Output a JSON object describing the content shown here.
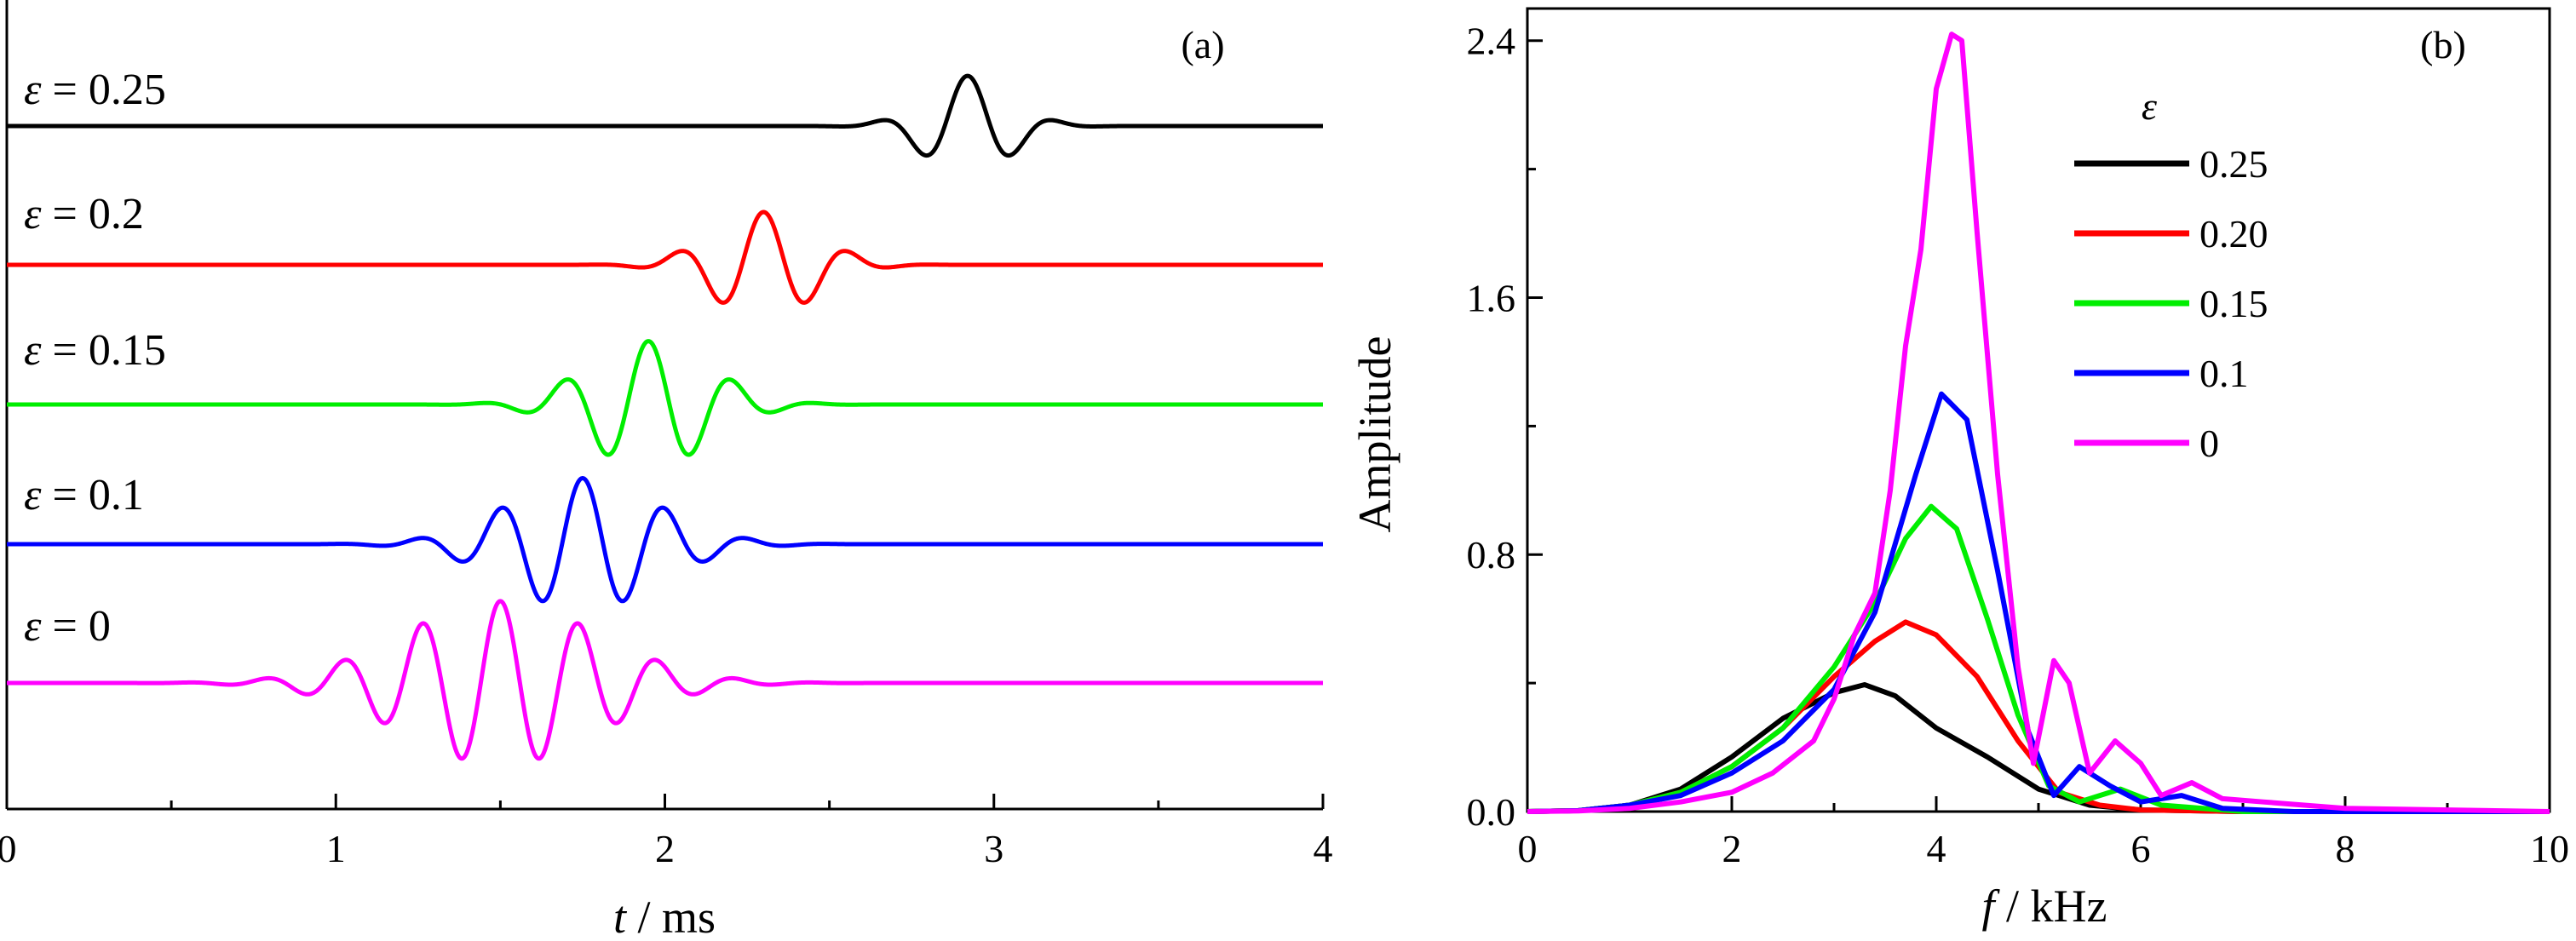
{
  "chart_data": [
    {
      "panel_label": "(a)",
      "type": "line",
      "xlabel": "t / ms",
      "xlim": [
        0,
        4
      ],
      "xticks": [
        "0",
        "1",
        "2",
        "3",
        "4"
      ],
      "series": [
        {
          "name": "ε = 0.25",
          "color": "#000000",
          "wavelet": {
            "t0": 2.92,
            "f": 3.6,
            "sigma": 0.18,
            "amp": 0.95
          }
        },
        {
          "name": "ε = 0.2",
          "color": "#ff0000",
          "wavelet": {
            "t0": 2.3,
            "f": 3.8,
            "sigma": 0.22,
            "amp": 1.0
          }
        },
        {
          "name": "ε = 0.15",
          "color": "#00ee00",
          "wavelet": {
            "t0": 1.95,
            "f": 3.9,
            "sigma": 0.26,
            "amp": 1.2
          }
        },
        {
          "name": "ε = 0.1",
          "color": "#0000ff",
          "wavelet": {
            "t0": 1.75,
            "f": 4.0,
            "sigma": 0.32,
            "amp": 1.25
          }
        },
        {
          "name": "ε = 0",
          "color": "#ff00ff",
          "wavelet": {
            "t0": 1.5,
            "f": 4.2,
            "sigma": 0.42,
            "amp": 1.55
          }
        }
      ]
    },
    {
      "panel_label": "(b)",
      "type": "line",
      "xlabel": "f / kHz",
      "ylabel": "Amplitude",
      "xlim": [
        0,
        10
      ],
      "ylim": [
        0,
        2.5
      ],
      "xticks": [
        "0",
        "2",
        "4",
        "6",
        "8",
        "10"
      ],
      "yticks": [
        "0.0",
        "0.8",
        "1.6",
        "2.4"
      ],
      "legend_title": "ε",
      "legend_position": "top-right",
      "series": [
        {
          "name": "0.25",
          "color": "#000000",
          "x": [
            0,
            0.5,
            1.0,
            1.5,
            2.0,
            2.5,
            3.0,
            3.3,
            3.6,
            4.0,
            4.5,
            5.0,
            5.5,
            6.0,
            7.0,
            10
          ],
          "y": [
            0,
            0.003,
            0.02,
            0.07,
            0.17,
            0.29,
            0.37,
            0.395,
            0.36,
            0.26,
            0.17,
            0.07,
            0.02,
            0.005,
            0,
            0
          ]
        },
        {
          "name": "0.20",
          "color": "#ff0000",
          "x": [
            0,
            0.5,
            1.0,
            1.5,
            2.0,
            2.5,
            3.0,
            3.4,
            3.7,
            4.0,
            4.4,
            4.8,
            5.2,
            5.6,
            6.0,
            7.0,
            10
          ],
          "y": [
            0,
            0.003,
            0.02,
            0.06,
            0.14,
            0.26,
            0.42,
            0.53,
            0.59,
            0.55,
            0.42,
            0.22,
            0.06,
            0.02,
            0.005,
            0,
            0
          ]
        },
        {
          "name": "0.15",
          "color": "#00ee00",
          "x": [
            0,
            0.5,
            1.0,
            1.5,
            2.0,
            2.5,
            3.0,
            3.4,
            3.7,
            3.95,
            4.2,
            4.5,
            4.8,
            5.1,
            5.4,
            5.8,
            6.2,
            7.0,
            10
          ],
          "y": [
            0,
            0.003,
            0.02,
            0.06,
            0.14,
            0.26,
            0.45,
            0.65,
            0.85,
            0.95,
            0.88,
            0.6,
            0.3,
            0.08,
            0.03,
            0.07,
            0.02,
            0,
            0
          ]
        },
        {
          "name": "0.1",
          "color": "#0000ff",
          "x": [
            0,
            0.5,
            1.0,
            1.5,
            2.0,
            2.5,
            3.0,
            3.4,
            3.8,
            4.05,
            4.3,
            4.6,
            4.9,
            5.15,
            5.4,
            5.7,
            6.0,
            6.4,
            6.8,
            7.5,
            10
          ],
          "y": [
            0,
            0.003,
            0.02,
            0.05,
            0.12,
            0.22,
            0.38,
            0.62,
            1.05,
            1.3,
            1.22,
            0.75,
            0.25,
            0.05,
            0.14,
            0.08,
            0.03,
            0.05,
            0.01,
            0,
            0
          ]
        },
        {
          "name": "0",
          "color": "#ff00ff",
          "x": [
            0,
            0.5,
            1.0,
            1.5,
            2.0,
            2.4,
            2.8,
            3.0,
            3.2,
            3.4,
            3.55,
            3.7,
            3.85,
            4.0,
            4.15,
            4.25,
            4.4,
            4.6,
            4.8,
            4.95,
            5.15,
            5.3,
            5.5,
            5.75,
            6.0,
            6.2,
            6.5,
            6.8,
            7.2,
            7.6,
            8.0,
            9.0,
            10
          ],
          "y": [
            0,
            0.002,
            0.01,
            0.03,
            0.06,
            0.12,
            0.22,
            0.35,
            0.55,
            0.68,
            1.0,
            1.45,
            1.75,
            2.25,
            2.42,
            2.4,
            1.8,
            1.05,
            0.45,
            0.15,
            0.47,
            0.4,
            0.12,
            0.22,
            0.15,
            0.05,
            0.09,
            0.04,
            0.03,
            0.02,
            0.01,
            0.005,
            0
          ]
        }
      ]
    }
  ]
}
